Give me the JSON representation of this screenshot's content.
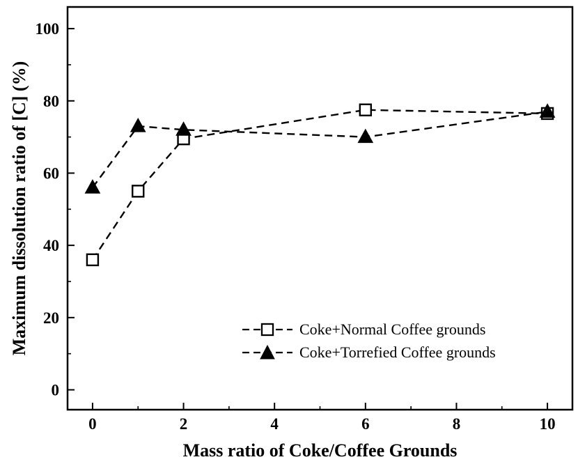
{
  "chart_data": {
    "type": "line",
    "title": "",
    "xlabel": "Mass ratio of Coke/Coffee Grounds",
    "ylabel": "Maximum dissolution ratio of [C] (%)",
    "xlim": [
      -0.55,
      10.55
    ],
    "ylim": [
      -5.5,
      106
    ],
    "xticks": [
      0,
      2,
      4,
      6,
      8,
      10
    ],
    "yticks": [
      0,
      20,
      40,
      60,
      80,
      100
    ],
    "x_minor_step": 1,
    "y_minor_step": 10,
    "grid": false,
    "line_style": "dashed",
    "color": "#000000",
    "legend_position": "inside-bottom-right",
    "series": [
      {
        "name": "Coke+Normal Coffee grounds",
        "marker": "open-square",
        "x": [
          0,
          1,
          2,
          6,
          10
        ],
        "y": [
          36,
          55,
          69.5,
          77.5,
          76.5
        ]
      },
      {
        "name": "Coke+Torrefied Coffee grounds",
        "marker": "filled-triangle",
        "x": [
          0,
          1,
          2,
          6,
          10
        ],
        "y": [
          56,
          73,
          72,
          70,
          77
        ]
      }
    ]
  }
}
